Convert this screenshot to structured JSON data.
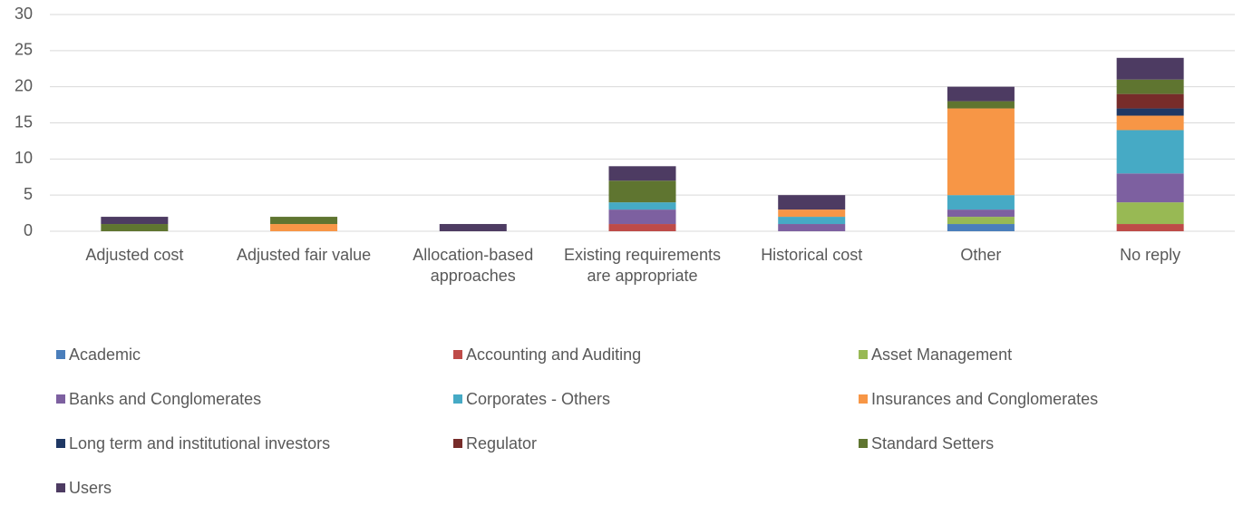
{
  "chart_data": {
    "type": "stacked_bar",
    "categories": [
      "Adjusted cost",
      "Adjusted fair value",
      "Allocation-based approaches",
      "Existing requirements are appropriate",
      "Historical cost",
      "Other",
      "No reply"
    ],
    "series": [
      {
        "name": "Academic",
        "color": "#4a7ebb",
        "values": [
          0,
          0,
          0,
          0,
          0,
          1,
          0
        ]
      },
      {
        "name": "Accounting and Auditing",
        "color": "#be4b48",
        "values": [
          0,
          0,
          0,
          1,
          0,
          0,
          1
        ]
      },
      {
        "name": "Asset Management",
        "color": "#98b954",
        "values": [
          0,
          0,
          0,
          0,
          0,
          1,
          3
        ]
      },
      {
        "name": "Banks and Conglomerates",
        "color": "#7d60a0",
        "values": [
          0,
          0,
          0,
          2,
          1,
          1,
          4
        ]
      },
      {
        "name": "Corporates - Others",
        "color": "#46aac5",
        "values": [
          0,
          0,
          0,
          1,
          1,
          2,
          6
        ]
      },
      {
        "name": "Insurances and Conglomerates",
        "color": "#f79646",
        "values": [
          0,
          1,
          0,
          0,
          1,
          12,
          2
        ]
      },
      {
        "name": "Long term and institutional investors",
        "color": "#1f3864",
        "values": [
          0,
          0,
          0,
          0,
          0,
          0,
          1
        ]
      },
      {
        "name": "Regulator",
        "color": "#772c2a",
        "values": [
          0,
          0,
          0,
          0,
          0,
          0,
          2
        ]
      },
      {
        "name": "Standard Setters",
        "color": "#5f7530",
        "values": [
          1,
          1,
          0,
          3,
          0,
          1,
          2
        ]
      },
      {
        "name": "Users",
        "color": "#4d3b62",
        "values": [
          1,
          0,
          1,
          2,
          2,
          2,
          3
        ]
      }
    ],
    "ylim": [
      0,
      30
    ],
    "yticks": [
      0,
      5,
      10,
      15,
      20,
      25,
      30
    ],
    "grid": true,
    "legend": "bottom"
  }
}
